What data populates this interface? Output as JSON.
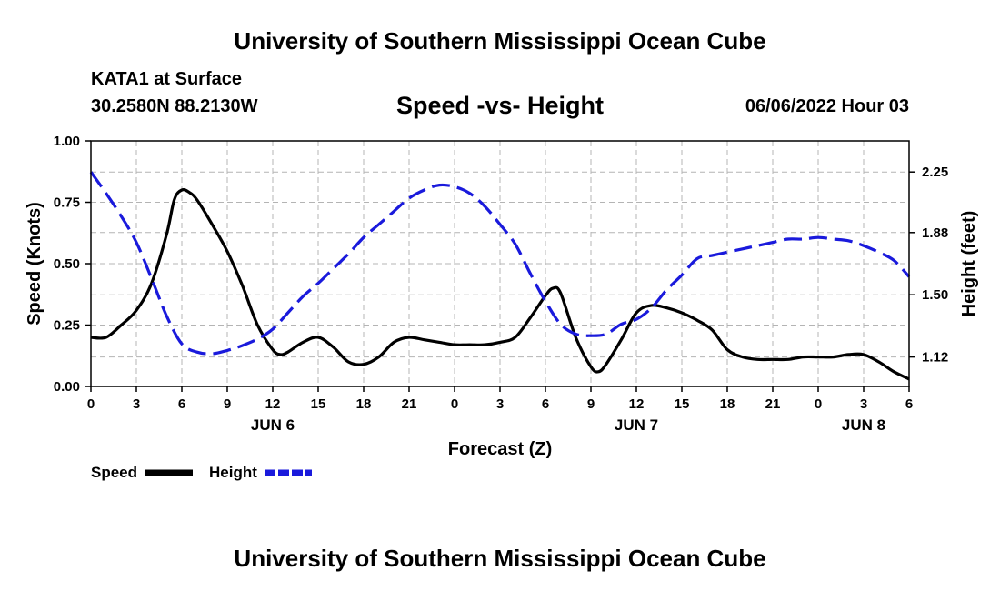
{
  "header": {
    "title": "University of Southern Mississippi Ocean Cube",
    "station": "KATA1 at Surface",
    "coords": "30.2580N  88.2130W",
    "datetime": "06/06/2022 Hour 03"
  },
  "footer": {
    "title": "University of Southern Mississippi Ocean Cube"
  },
  "colors": {
    "speed": "#000000",
    "height": "#1a1adc",
    "grid": "#b4b4b4"
  },
  "chart_data": {
    "type": "line",
    "title": "Speed -vs- Height",
    "xlabel": "Forecast (Z)",
    "ylabel": "Speed (Knots)",
    "y2label": "Height (feet)",
    "xlim": [
      0,
      54
    ],
    "ylim": [
      0,
      1
    ],
    "y2lim": [
      0.94,
      2.44
    ],
    "xticks": [
      0,
      3,
      6,
      9,
      12,
      15,
      18,
      21,
      24,
      27,
      30,
      33,
      36,
      39,
      42,
      45,
      48,
      51,
      54
    ],
    "xtick_labels": [
      "0",
      "3",
      "6",
      "9",
      "12",
      "15",
      "18",
      "21",
      "0",
      "3",
      "6",
      "9",
      "12",
      "15",
      "18",
      "21",
      "0",
      "3",
      "6"
    ],
    "yticks": [
      0,
      0.25,
      0.5,
      0.75,
      1.0
    ],
    "ytick_labels": [
      "0.00",
      "0.25",
      "0.50",
      "0.75",
      "1.00"
    ],
    "y2ticks": [
      1.12,
      1.5,
      1.88,
      2.25
    ],
    "y2tick_labels": [
      "1.12",
      "1.50",
      "1.88",
      "2.25"
    ],
    "day_labels": [
      {
        "x": 12,
        "label": "JUN 6"
      },
      {
        "x": 36,
        "label": "JUN 7"
      },
      {
        "x": 51,
        "label": "JUN 8"
      }
    ],
    "grid": true,
    "legend": [
      {
        "name": "Speed",
        "style": "solid"
      },
      {
        "name": "Height",
        "style": "dashed"
      }
    ],
    "series": [
      {
        "name": "Speed",
        "axis": "left",
        "style": "solid",
        "x": [
          0,
          1,
          2,
          3,
          4,
          5,
          5.5,
          6,
          6.5,
          7,
          8,
          9,
          10,
          11,
          12,
          12.5,
          13,
          14,
          15,
          16,
          17,
          18,
          19,
          20,
          21,
          22,
          23,
          24,
          25,
          26,
          27,
          28,
          29,
          30,
          30.5,
          31,
          32,
          33,
          33.5,
          34,
          35,
          36,
          37,
          38,
          39,
          40,
          41,
          42,
          43,
          44,
          45,
          46,
          47,
          48,
          49,
          50,
          51,
          52,
          53,
          54
        ],
        "values": [
          0.2,
          0.2,
          0.25,
          0.31,
          0.42,
          0.62,
          0.76,
          0.8,
          0.79,
          0.76,
          0.66,
          0.55,
          0.41,
          0.25,
          0.15,
          0.13,
          0.14,
          0.18,
          0.2,
          0.16,
          0.1,
          0.09,
          0.12,
          0.18,
          0.2,
          0.19,
          0.18,
          0.17,
          0.17,
          0.17,
          0.18,
          0.2,
          0.28,
          0.37,
          0.4,
          0.38,
          0.2,
          0.08,
          0.06,
          0.09,
          0.19,
          0.3,
          0.33,
          0.32,
          0.3,
          0.27,
          0.23,
          0.15,
          0.12,
          0.11,
          0.11,
          0.11,
          0.12,
          0.12,
          0.12,
          0.13,
          0.13,
          0.1,
          0.06,
          0.03
        ]
      },
      {
        "name": "Height",
        "axis": "right",
        "style": "dashed",
        "x": [
          0,
          1,
          2,
          3,
          4,
          5,
          6,
          7,
          8,
          9,
          10,
          11,
          12,
          13,
          14,
          15,
          16,
          17,
          18,
          19,
          20,
          21,
          22,
          23,
          24,
          25,
          26,
          27,
          28,
          29,
          30,
          31,
          32,
          33,
          34,
          35,
          36,
          37,
          38,
          39,
          40,
          41,
          42,
          43,
          44,
          45,
          46,
          47,
          48,
          49,
          50,
          51,
          52,
          53,
          54
        ],
        "values": [
          2.25,
          2.12,
          1.98,
          1.82,
          1.6,
          1.37,
          1.2,
          1.15,
          1.14,
          1.16,
          1.19,
          1.23,
          1.29,
          1.39,
          1.49,
          1.57,
          1.66,
          1.75,
          1.85,
          1.93,
          2.01,
          2.09,
          2.14,
          2.17,
          2.16,
          2.12,
          2.04,
          1.93,
          1.81,
          1.63,
          1.46,
          1.32,
          1.26,
          1.25,
          1.26,
          1.32,
          1.35,
          1.42,
          1.53,
          1.62,
          1.72,
          1.74,
          1.76,
          1.78,
          1.8,
          1.82,
          1.84,
          1.84,
          1.85,
          1.84,
          1.83,
          1.8,
          1.76,
          1.71,
          1.61
        ]
      }
    ]
  }
}
